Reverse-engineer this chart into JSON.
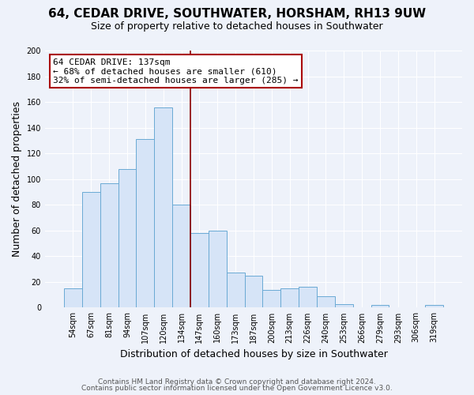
{
  "title": "64, CEDAR DRIVE, SOUTHWATER, HORSHAM, RH13 9UW",
  "subtitle": "Size of property relative to detached houses in Southwater",
  "xlabel": "Distribution of detached houses by size in Southwater",
  "ylabel": "Number of detached properties",
  "categories": [
    "54sqm",
    "67sqm",
    "81sqm",
    "94sqm",
    "107sqm",
    "120sqm",
    "134sqm",
    "147sqm",
    "160sqm",
    "173sqm",
    "187sqm",
    "200sqm",
    "213sqm",
    "226sqm",
    "240sqm",
    "253sqm",
    "266sqm",
    "279sqm",
    "293sqm",
    "306sqm",
    "319sqm"
  ],
  "values": [
    15,
    90,
    97,
    108,
    131,
    156,
    80,
    58,
    60,
    27,
    25,
    14,
    15,
    16,
    9,
    3,
    0,
    2,
    0,
    0,
    2
  ],
  "bar_color": "#d6e4f7",
  "bar_edge_color": "#6aaad4",
  "highlight_line_color": "#8b0000",
  "annotation_title": "64 CEDAR DRIVE: 137sqm",
  "annotation_line1": "← 68% of detached houses are smaller (610)",
  "annotation_line2": "32% of semi-detached houses are larger (285) →",
  "annotation_box_color": "#ffffff",
  "annotation_box_edge_color": "#aa0000",
  "ylim": [
    0,
    200
  ],
  "yticks": [
    0,
    20,
    40,
    60,
    80,
    100,
    120,
    140,
    160,
    180,
    200
  ],
  "footer1": "Contains HM Land Registry data © Crown copyright and database right 2024.",
  "footer2": "Contains public sector information licensed under the Open Government Licence v3.0.",
  "background_color": "#eef2fa",
  "grid_color": "#ffffff",
  "title_fontsize": 11,
  "subtitle_fontsize": 9,
  "axis_label_fontsize": 9,
  "tick_fontsize": 7,
  "footer_fontsize": 6.5,
  "annotation_fontsize": 8
}
